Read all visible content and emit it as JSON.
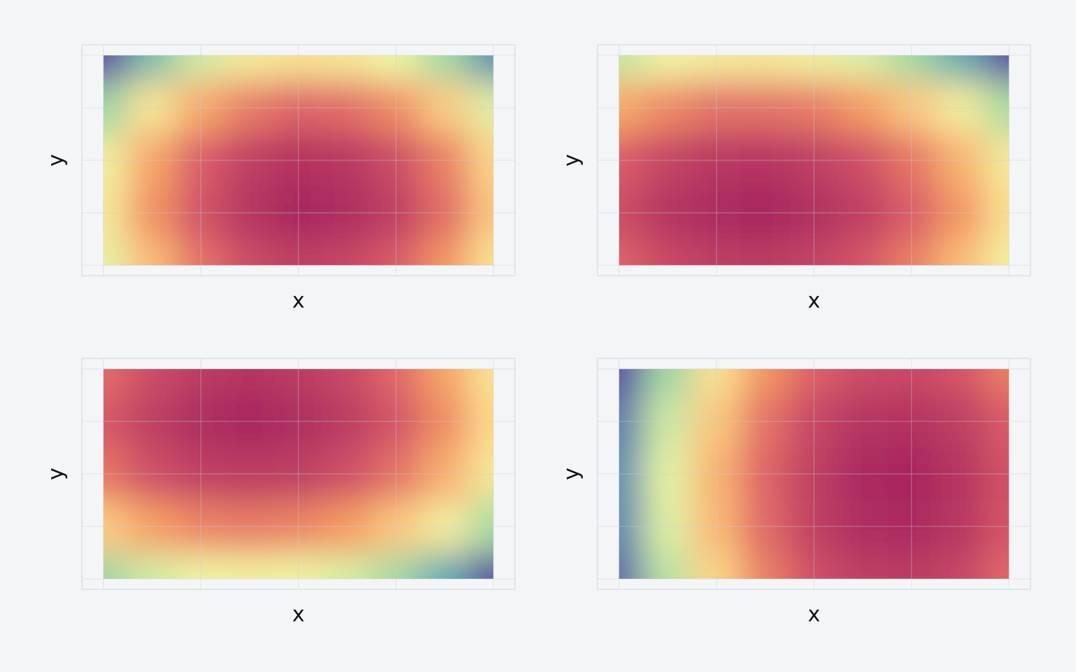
{
  "chart_data": [
    {
      "type": "heatmap",
      "x_label": "x",
      "y_label": "y",
      "x": [
        0,
        0.125,
        0.25,
        0.375,
        0.5,
        0.625,
        0.75,
        0.875,
        1
      ],
      "y": [
        1,
        0.75,
        0.5,
        0.25,
        0
      ],
      "z": [
        [
          0,
          0.21,
          0.37,
          0.47,
          0.51,
          0.49,
          0.42,
          0.29,
          0.11
        ],
        [
          0.28,
          0.5,
          0.65,
          0.75,
          0.8,
          0.78,
          0.71,
          0.58,
          0.39
        ],
        [
          0.45,
          0.66,
          0.82,
          0.92,
          0.96,
          0.94,
          0.87,
          0.74,
          0.56
        ],
        [
          0.48,
          0.7,
          0.85,
          0.95,
          1.0,
          0.98,
          0.91,
          0.78,
          0.59
        ],
        [
          0.4,
          0.61,
          0.77,
          0.87,
          0.91,
          0.89,
          0.82,
          0.69,
          0.51
        ]
      ],
      "xlim": [
        -0.055,
        1.055
      ],
      "ylim": [
        -0.05,
        1.05
      ],
      "xticks": [
        0,
        0.25,
        0.5,
        0.75,
        1
      ],
      "yticks": [
        0,
        0.25,
        0.5,
        0.75,
        1
      ],
      "grid": true,
      "colorscale": [
        [
          0,
          "#5e4fa2"
        ],
        [
          0.15,
          "#5fa8b2"
        ],
        [
          0.3,
          "#a9dca3"
        ],
        [
          0.42,
          "#eef5a6"
        ],
        [
          0.55,
          "#fdd98a"
        ],
        [
          0.68,
          "#f59b62"
        ],
        [
          0.82,
          "#d95b69"
        ],
        [
          1,
          "#a8285f"
        ]
      ]
    },
    {
      "type": "heatmap",
      "x_label": "x",
      "y_label": "y",
      "x": [
        0,
        0.125,
        0.25,
        0.375,
        0.5,
        0.625,
        0.75,
        0.875,
        1
      ],
      "y": [
        1,
        0.75,
        0.5,
        0.25,
        0
      ],
      "z": [
        [
          0.35,
          0.43,
          0.47,
          0.48,
          0.45,
          0.39,
          0.29,
          0.16,
          0
        ],
        [
          0.65,
          0.72,
          0.77,
          0.77,
          0.75,
          0.68,
          0.59,
          0.46,
          0.3
        ],
        [
          0.82,
          0.9,
          0.94,
          0.95,
          0.92,
          0.86,
          0.76,
          0.63,
          0.47
        ],
        [
          0.87,
          0.95,
          0.99,
          1.0,
          0.97,
          0.91,
          0.82,
          0.69,
          0.52
        ],
        [
          0.8,
          0.88,
          0.92,
          0.93,
          0.9,
          0.84,
          0.74,
          0.61,
          0.45
        ]
      ],
      "xlim": [
        -0.055,
        1.055
      ],
      "ylim": [
        -0.05,
        1.05
      ],
      "xticks": [
        0,
        0.25,
        0.5,
        0.75,
        1
      ],
      "yticks": [
        0,
        0.25,
        0.5,
        0.75,
        1
      ],
      "grid": true,
      "colorscale": [
        [
          0,
          "#5e4fa2"
        ],
        [
          0.15,
          "#5fa8b2"
        ],
        [
          0.3,
          "#a9dca3"
        ],
        [
          0.42,
          "#eef5a6"
        ],
        [
          0.55,
          "#fdd98a"
        ],
        [
          0.68,
          "#f59b62"
        ],
        [
          0.82,
          "#d95b69"
        ],
        [
          1,
          "#a8285f"
        ]
      ]
    },
    {
      "type": "heatmap",
      "x_label": "x",
      "y_label": "y",
      "x": [
        0,
        0.125,
        0.25,
        0.375,
        0.5,
        0.625,
        0.75,
        0.875,
        1
      ],
      "y": [
        1,
        0.75,
        0.5,
        0.25,
        0
      ],
      "z": [
        [
          0.78,
          0.87,
          0.93,
          0.95,
          0.93,
          0.88,
          0.79,
          0.66,
          0.5
        ],
        [
          0.83,
          0.92,
          0.98,
          1.0,
          0.98,
          0.93,
          0.84,
          0.71,
          0.55
        ],
        [
          0.76,
          0.86,
          0.91,
          0.93,
          0.92,
          0.86,
          0.77,
          0.64,
          0.48
        ],
        [
          0.58,
          0.67,
          0.73,
          0.75,
          0.73,
          0.68,
          0.59,
          0.46,
          0.3
        ],
        [
          0.28,
          0.37,
          0.43,
          0.45,
          0.43,
          0.38,
          0.29,
          0.16,
          0
        ]
      ],
      "xlim": [
        -0.055,
        1.055
      ],
      "ylim": [
        -0.05,
        1.05
      ],
      "xticks": [
        0,
        0.25,
        0.5,
        0.75,
        1
      ],
      "yticks": [
        0,
        0.25,
        0.5,
        0.75,
        1
      ],
      "grid": true,
      "colorscale": [
        [
          0,
          "#5e4fa2"
        ],
        [
          0.15,
          "#5fa8b2"
        ],
        [
          0.3,
          "#a9dca3"
        ],
        [
          0.42,
          "#eef5a6"
        ],
        [
          0.55,
          "#fdd98a"
        ],
        [
          0.68,
          "#f59b62"
        ],
        [
          0.82,
          "#d95b69"
        ],
        [
          1,
          "#a8285f"
        ]
      ]
    },
    {
      "type": "heatmap",
      "x_label": "x",
      "y_label": "y",
      "x": [
        0,
        0.125,
        0.25,
        0.375,
        0.5,
        0.625,
        0.75,
        0.875,
        1
      ],
      "y": [
        1,
        0.75,
        0.5,
        0.25,
        0
      ],
      "z": [
        [
          0,
          0.28,
          0.51,
          0.69,
          0.81,
          0.87,
          0.88,
          0.84,
          0.74
        ],
        [
          0.08,
          0.36,
          0.59,
          0.77,
          0.89,
          0.95,
          0.96,
          0.92,
          0.82
        ],
        [
          0.11,
          0.4,
          0.63,
          0.8,
          0.92,
          0.99,
          1.0,
          0.95,
          0.85
        ],
        [
          0.1,
          0.39,
          0.62,
          0.79,
          0.91,
          0.98,
          0.99,
          0.94,
          0.84
        ],
        [
          0.05,
          0.33,
          0.56,
          0.74,
          0.86,
          0.92,
          0.93,
          0.89,
          0.79
        ]
      ],
      "xlim": [
        -0.055,
        1.055
      ],
      "ylim": [
        -0.05,
        1.05
      ],
      "xticks": [
        0,
        0.25,
        0.5,
        0.75,
        1
      ],
      "yticks": [
        0,
        0.25,
        0.5,
        0.75,
        1
      ],
      "grid": true,
      "colorscale": [
        [
          0,
          "#5e4fa2"
        ],
        [
          0.15,
          "#5fa8b2"
        ],
        [
          0.3,
          "#a9dca3"
        ],
        [
          0.42,
          "#eef5a6"
        ],
        [
          0.55,
          "#fdd98a"
        ],
        [
          0.68,
          "#f59b62"
        ],
        [
          0.82,
          "#d95b69"
        ],
        [
          1,
          "#a8285f"
        ]
      ]
    }
  ]
}
